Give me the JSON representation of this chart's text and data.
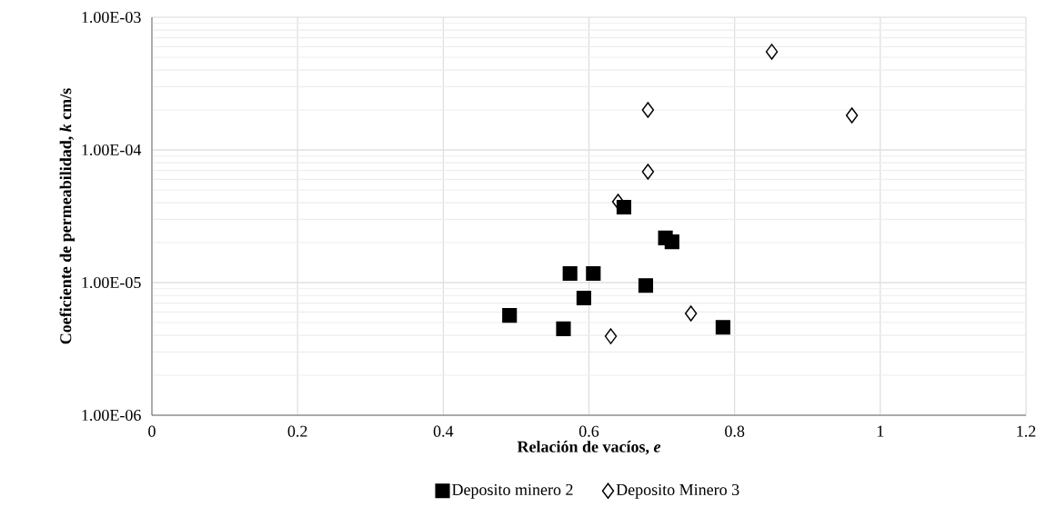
{
  "chart_data": {
    "type": "scatter",
    "xlabel": "Relación de vacíos, *e*",
    "ylabel": "Coeficiente de permeabilidad, *k* cm/s",
    "series": [
      {
        "name": "Deposito minero 2",
        "color": "#000000",
        "marker": "square",
        "x": [
          0.491,
          0.565,
          0.574,
          0.606,
          0.593,
          0.648,
          0.705,
          0.714,
          0.678,
          0.784
        ],
        "values": [
          5.66e-06,
          4.48e-06,
          1.17e-05,
          1.17e-05,
          7.65e-06,
          3.7e-05,
          2.17e-05,
          2.03e-05,
          9.5e-06,
          4.6e-06
        ]
      },
      {
        "name": "Deposito Minero 3",
        "color": "#000000",
        "marker": "diamond",
        "x": [
          0.681,
          0.64,
          0.74,
          0.63,
          0.681,
          0.851,
          0.961
        ],
        "values": [
          6.85e-05,
          4.07e-05,
          5.85e-06,
          3.94e-06,
          0.0002,
          0.00055,
          0.000182
        ]
      }
    ],
    "xlim": [
      0,
      1.2
    ],
    "xticks": [
      0,
      0.2,
      0.4,
      0.6,
      0.8,
      1,
      1.2
    ],
    "ylim": [
      1e-06,
      0.001
    ],
    "yticks": [
      {
        "value": 1e-06,
        "label": "1.00E-06"
      },
      {
        "value": 1e-05,
        "label": "1.00E-05"
      },
      {
        "value": 0.0001,
        "label": "1.00E-04"
      },
      {
        "value": 0.001,
        "label": "1.00E-03"
      }
    ],
    "log": "y",
    "grid": true,
    "legend": "bottom"
  }
}
